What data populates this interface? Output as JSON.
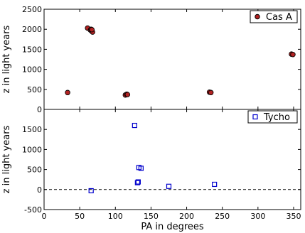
{
  "colors": {
    "cas_a_fill": "#b22222",
    "cas_a_edge": "#000000",
    "tycho_edge": "#0000cc",
    "zero_line": "#000000"
  },
  "chart_data": [
    {
      "type": "scatter",
      "panel": "top",
      "xlim": [
        0,
        360
      ],
      "ylim": [
        0,
        2500
      ],
      "xlabel": "",
      "ylabel": "z in light years",
      "yticks": [
        "0",
        "500",
        "1000",
        "1500",
        "2000",
        "2500"
      ],
      "xticks": [
        "",
        "",
        "",
        "",
        "",
        "",
        "",
        ""
      ],
      "grid": false,
      "legend_position": "top-right",
      "series": [
        {
          "name": "Cas A",
          "marker": "circle",
          "x": [
            33,
            61,
            65,
            66,
            67,
            68,
            67,
            114,
            116,
            117,
            232,
            234,
            347,
            349
          ],
          "y": [
            420,
            2030,
            1980,
            2000,
            1950,
            1930,
            1990,
            360,
            380,
            370,
            430,
            420,
            1380,
            1370
          ]
        }
      ]
    },
    {
      "type": "scatter",
      "panel": "bottom",
      "xlim": [
        0,
        360
      ],
      "ylim": [
        -500,
        2000
      ],
      "xlabel": "PA in degrees",
      "ylabel": "z in light years",
      "xticks": [
        "0",
        "50",
        "100",
        "150",
        "200",
        "250",
        "300",
        "350"
      ],
      "yticks": [
        "-500",
        "0",
        "500",
        "1000",
        "1500"
      ],
      "grid": false,
      "legend_position": "top-right",
      "reference_line_y": 0,
      "series": [
        {
          "name": "Tycho",
          "marker": "square",
          "x": [
            66,
            127,
            131,
            132,
            133,
            136,
            175,
            239
          ],
          "y": [
            -30,
            1600,
            170,
            190,
            550,
            530,
            80,
            130
          ]
        }
      ]
    }
  ]
}
